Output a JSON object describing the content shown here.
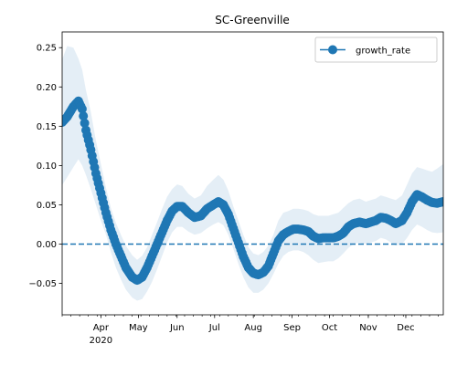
{
  "chart_data": {
    "type": "line",
    "title": "SC-Greenville",
    "xlabel": "",
    "ylabel": "",
    "legend": {
      "label": "growth_rate",
      "placement": "top-right"
    },
    "colors": {
      "series": "#1f77b4",
      "band": "#1f77b4"
    },
    "x_range": [
      "2020-03-01",
      "2020-12-31"
    ],
    "ylim": [
      -0.09,
      0.27
    ],
    "yticks": [
      -0.05,
      0.0,
      0.05,
      0.1,
      0.15,
      0.2,
      0.25
    ],
    "ytick_labels": [
      "−0.05",
      "0.00",
      "0.05",
      "0.10",
      "0.15",
      "0.20",
      "0.25"
    ],
    "xticks": [
      {
        "date": "2020-04-01",
        "label": "Apr",
        "sublabel": "2020"
      },
      {
        "date": "2020-05-01",
        "label": "May"
      },
      {
        "date": "2020-06-01",
        "label": "Jun"
      },
      {
        "date": "2020-07-01",
        "label": "Jul"
      },
      {
        "date": "2020-08-01",
        "label": "Aug"
      },
      {
        "date": "2020-09-01",
        "label": "Sep"
      },
      {
        "date": "2020-10-01",
        "label": "Oct"
      },
      {
        "date": "2020-11-01",
        "label": "Nov"
      },
      {
        "date": "2020-12-01",
        "label": "Dec"
      }
    ],
    "reference_line": {
      "y": 0.0,
      "style": "dashed"
    },
    "series": [
      {
        "name": "growth_rate",
        "points": [
          {
            "x": "2020-03-01",
            "y": 0.155,
            "lo": 0.075,
            "hi": 0.235
          },
          {
            "x": "2020-03-05",
            "y": 0.162,
            "lo": 0.085,
            "hi": 0.252
          },
          {
            "x": "2020-03-10",
            "y": 0.175,
            "lo": 0.098,
            "hi": 0.25
          },
          {
            "x": "2020-03-14",
            "y": 0.182,
            "lo": 0.108,
            "hi": 0.236
          },
          {
            "x": "2020-03-17",
            "y": 0.172,
            "lo": 0.1,
            "hi": 0.222
          },
          {
            "x": "2020-03-20",
            "y": 0.145,
            "lo": 0.088,
            "hi": 0.196
          },
          {
            "x": "2020-03-24",
            "y": 0.12,
            "lo": 0.07,
            "hi": 0.168
          },
          {
            "x": "2020-03-28",
            "y": 0.09,
            "lo": 0.05,
            "hi": 0.132
          },
          {
            "x": "2020-04-01",
            "y": 0.065,
            "lo": 0.03,
            "hi": 0.102
          },
          {
            "x": "2020-04-05",
            "y": 0.04,
            "lo": 0.012,
            "hi": 0.072
          },
          {
            "x": "2020-04-09",
            "y": 0.018,
            "lo": -0.01,
            "hi": 0.046
          },
          {
            "x": "2020-04-13",
            "y": 0.0,
            "lo": -0.03,
            "hi": 0.027
          },
          {
            "x": "2020-04-17",
            "y": -0.015,
            "lo": -0.045,
            "hi": 0.012
          },
          {
            "x": "2020-04-21",
            "y": -0.03,
            "lo": -0.058,
            "hi": -0.002
          },
          {
            "x": "2020-04-26",
            "y": -0.042,
            "lo": -0.068,
            "hi": -0.014
          },
          {
            "x": "2020-04-30",
            "y": -0.046,
            "lo": -0.072,
            "hi": -0.02
          },
          {
            "x": "2020-05-04",
            "y": -0.042,
            "lo": -0.07,
            "hi": -0.015
          },
          {
            "x": "2020-05-08",
            "y": -0.03,
            "lo": -0.06,
            "hi": -0.004
          },
          {
            "x": "2020-05-12",
            "y": -0.015,
            "lo": -0.048,
            "hi": 0.012
          },
          {
            "x": "2020-05-16",
            "y": 0.0,
            "lo": -0.032,
            "hi": 0.028
          },
          {
            "x": "2020-05-20",
            "y": 0.015,
            "lo": -0.015,
            "hi": 0.045
          },
          {
            "x": "2020-05-24",
            "y": 0.03,
            "lo": 0.002,
            "hi": 0.06
          },
          {
            "x": "2020-05-28",
            "y": 0.042,
            "lo": 0.015,
            "hi": 0.07
          },
          {
            "x": "2020-06-01",
            "y": 0.048,
            "lo": 0.022,
            "hi": 0.076
          },
          {
            "x": "2020-06-05",
            "y": 0.048,
            "lo": 0.022,
            "hi": 0.074
          },
          {
            "x": "2020-06-10",
            "y": 0.04,
            "lo": 0.016,
            "hi": 0.064
          },
          {
            "x": "2020-06-15",
            "y": 0.034,
            "lo": 0.012,
            "hi": 0.058
          },
          {
            "x": "2020-06-20",
            "y": 0.036,
            "lo": 0.014,
            "hi": 0.062
          },
          {
            "x": "2020-06-25",
            "y": 0.045,
            "lo": 0.02,
            "hi": 0.074
          },
          {
            "x": "2020-06-30",
            "y": 0.05,
            "lo": 0.025,
            "hi": 0.082
          },
          {
            "x": "2020-07-04",
            "y": 0.054,
            "lo": 0.028,
            "hi": 0.088
          },
          {
            "x": "2020-07-08",
            "y": 0.05,
            "lo": 0.024,
            "hi": 0.082
          },
          {
            "x": "2020-07-12",
            "y": 0.038,
            "lo": 0.012,
            "hi": 0.068
          },
          {
            "x": "2020-07-16",
            "y": 0.02,
            "lo": -0.006,
            "hi": 0.048
          },
          {
            "x": "2020-07-20",
            "y": 0.002,
            "lo": -0.025,
            "hi": 0.03
          },
          {
            "x": "2020-07-24",
            "y": -0.016,
            "lo": -0.042,
            "hi": 0.012
          },
          {
            "x": "2020-07-28",
            "y": -0.03,
            "lo": -0.055,
            "hi": -0.004
          },
          {
            "x": "2020-08-01",
            "y": -0.037,
            "lo": -0.062,
            "hi": -0.012
          },
          {
            "x": "2020-08-05",
            "y": -0.039,
            "lo": -0.062,
            "hi": -0.014
          },
          {
            "x": "2020-08-09",
            "y": -0.036,
            "lo": -0.058,
            "hi": -0.01
          },
          {
            "x": "2020-08-13",
            "y": -0.028,
            "lo": -0.05,
            "hi": -0.002
          },
          {
            "x": "2020-08-17",
            "y": -0.012,
            "lo": -0.038,
            "hi": 0.012
          },
          {
            "x": "2020-08-21",
            "y": 0.004,
            "lo": -0.025,
            "hi": 0.03
          },
          {
            "x": "2020-08-25",
            "y": 0.012,
            "lo": -0.015,
            "hi": 0.04
          },
          {
            "x": "2020-08-29",
            "y": 0.016,
            "lo": -0.01,
            "hi": 0.042
          },
          {
            "x": "2020-09-02",
            "y": 0.019,
            "lo": -0.008,
            "hi": 0.045
          },
          {
            "x": "2020-09-06",
            "y": 0.019,
            "lo": -0.008,
            "hi": 0.045
          },
          {
            "x": "2020-09-10",
            "y": 0.018,
            "lo": -0.01,
            "hi": 0.044
          },
          {
            "x": "2020-09-14",
            "y": 0.016,
            "lo": -0.014,
            "hi": 0.042
          },
          {
            "x": "2020-09-18",
            "y": 0.01,
            "lo": -0.02,
            "hi": 0.038
          },
          {
            "x": "2020-09-22",
            "y": 0.007,
            "lo": -0.024,
            "hi": 0.036
          },
          {
            "x": "2020-09-26",
            "y": 0.008,
            "lo": -0.023,
            "hi": 0.036
          },
          {
            "x": "2020-09-30",
            "y": 0.008,
            "lo": -0.022,
            "hi": 0.036
          },
          {
            "x": "2020-10-04",
            "y": 0.008,
            "lo": -0.022,
            "hi": 0.038
          },
          {
            "x": "2020-10-08",
            "y": 0.01,
            "lo": -0.018,
            "hi": 0.04
          },
          {
            "x": "2020-10-12",
            "y": 0.014,
            "lo": -0.012,
            "hi": 0.046
          },
          {
            "x": "2020-10-16",
            "y": 0.022,
            "lo": -0.005,
            "hi": 0.052
          },
          {
            "x": "2020-10-20",
            "y": 0.026,
            "lo": 0.0,
            "hi": 0.056
          },
          {
            "x": "2020-10-25",
            "y": 0.028,
            "lo": 0.002,
            "hi": 0.058
          },
          {
            "x": "2020-10-30",
            "y": 0.026,
            "lo": 0.0,
            "hi": 0.054
          },
          {
            "x": "2020-11-03",
            "y": 0.028,
            "lo": 0.002,
            "hi": 0.056
          },
          {
            "x": "2020-11-07",
            "y": 0.03,
            "lo": 0.004,
            "hi": 0.058
          },
          {
            "x": "2020-11-11",
            "y": 0.034,
            "lo": 0.008,
            "hi": 0.062
          },
          {
            "x": "2020-11-15",
            "y": 0.033,
            "lo": 0.006,
            "hi": 0.06
          },
          {
            "x": "2020-11-19",
            "y": 0.03,
            "lo": 0.002,
            "hi": 0.058
          },
          {
            "x": "2020-11-23",
            "y": 0.026,
            "lo": -0.002,
            "hi": 0.056
          },
          {
            "x": "2020-11-28",
            "y": 0.03,
            "lo": 0.0,
            "hi": 0.062
          },
          {
            "x": "2020-12-02",
            "y": 0.04,
            "lo": 0.008,
            "hi": 0.076
          },
          {
            "x": "2020-12-06",
            "y": 0.054,
            "lo": 0.018,
            "hi": 0.09
          },
          {
            "x": "2020-12-10",
            "y": 0.063,
            "lo": 0.025,
            "hi": 0.098
          },
          {
            "x": "2020-12-14",
            "y": 0.06,
            "lo": 0.022,
            "hi": 0.096
          },
          {
            "x": "2020-12-18",
            "y": 0.056,
            "lo": 0.018,
            "hi": 0.094
          },
          {
            "x": "2020-12-22",
            "y": 0.053,
            "lo": 0.015,
            "hi": 0.092
          },
          {
            "x": "2020-12-26",
            "y": 0.052,
            "lo": 0.014,
            "hi": 0.096
          },
          {
            "x": "2020-12-31",
            "y": 0.054,
            "lo": 0.015,
            "hi": 0.102
          }
        ]
      }
    ]
  }
}
